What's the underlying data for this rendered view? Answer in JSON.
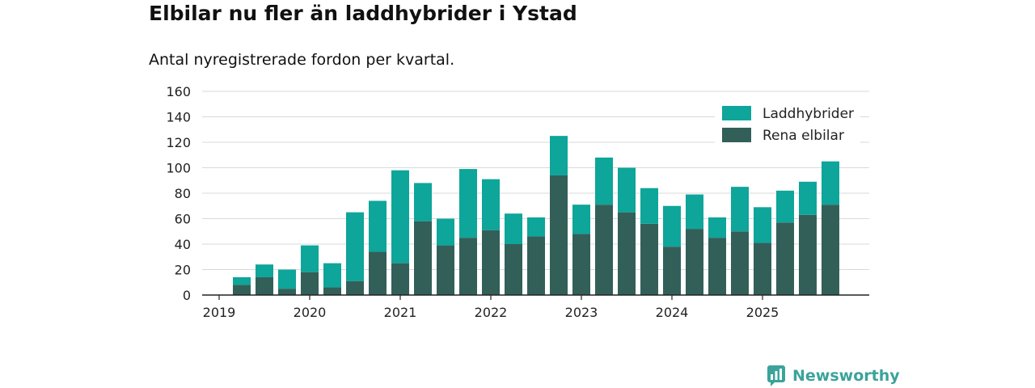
{
  "title": "Elbilar nu fler än laddhybrider i Ystad",
  "subtitle": "Antal nyregistrerade fordon per kvartal.",
  "brand": "Newsworthy",
  "colors": {
    "hybrid": "#0ea59a",
    "electric": "#335f59",
    "grid": "#d9d9d9",
    "axis": "#222222",
    "brand": "#3ba39a"
  },
  "chart_data": {
    "type": "bar",
    "stacked": true,
    "categories": [
      "2019Q1",
      "2019Q2",
      "2019Q3",
      "2019Q4",
      "2020Q1",
      "2020Q2",
      "2020Q3",
      "2020Q4",
      "2021Q1",
      "2021Q2",
      "2021Q3",
      "2021Q4",
      "2022Q1",
      "2022Q2",
      "2022Q3",
      "2022Q4",
      "2023Q1",
      "2023Q2",
      "2023Q3",
      "2023Q4",
      "2024Q1",
      "2024Q2",
      "2024Q3",
      "2024Q4",
      "2025Q1",
      "2025Q2",
      "2025Q3",
      "2025Q4"
    ],
    "x_tick_labels": [
      "2019",
      "2020",
      "2021",
      "2022",
      "2023",
      "2024",
      "2025"
    ],
    "series": [
      {
        "name": "Rena elbilar",
        "values": [
          0,
          8,
          14,
          5,
          18,
          6,
          11,
          34,
          25,
          58,
          39,
          45,
          51,
          40,
          46,
          94,
          48,
          71,
          65,
          56,
          38,
          52,
          45,
          50,
          41,
          57,
          63,
          71
        ]
      },
      {
        "name": "Laddhybrider",
        "values": [
          0,
          6,
          10,
          15,
          21,
          19,
          54,
          40,
          73,
          30,
          21,
          54,
          40,
          24,
          15,
          31,
          23,
          37,
          35,
          28,
          32,
          27,
          16,
          35,
          28,
          25,
          26,
          34
        ]
      }
    ],
    "ylim": [
      0,
      160
    ],
    "yticks": [
      0,
      20,
      40,
      60,
      80,
      100,
      120,
      140,
      160
    ],
    "grid": true,
    "legend": {
      "position": "top-right",
      "entries": [
        "Laddhybrider",
        "Rena elbilar"
      ]
    }
  }
}
